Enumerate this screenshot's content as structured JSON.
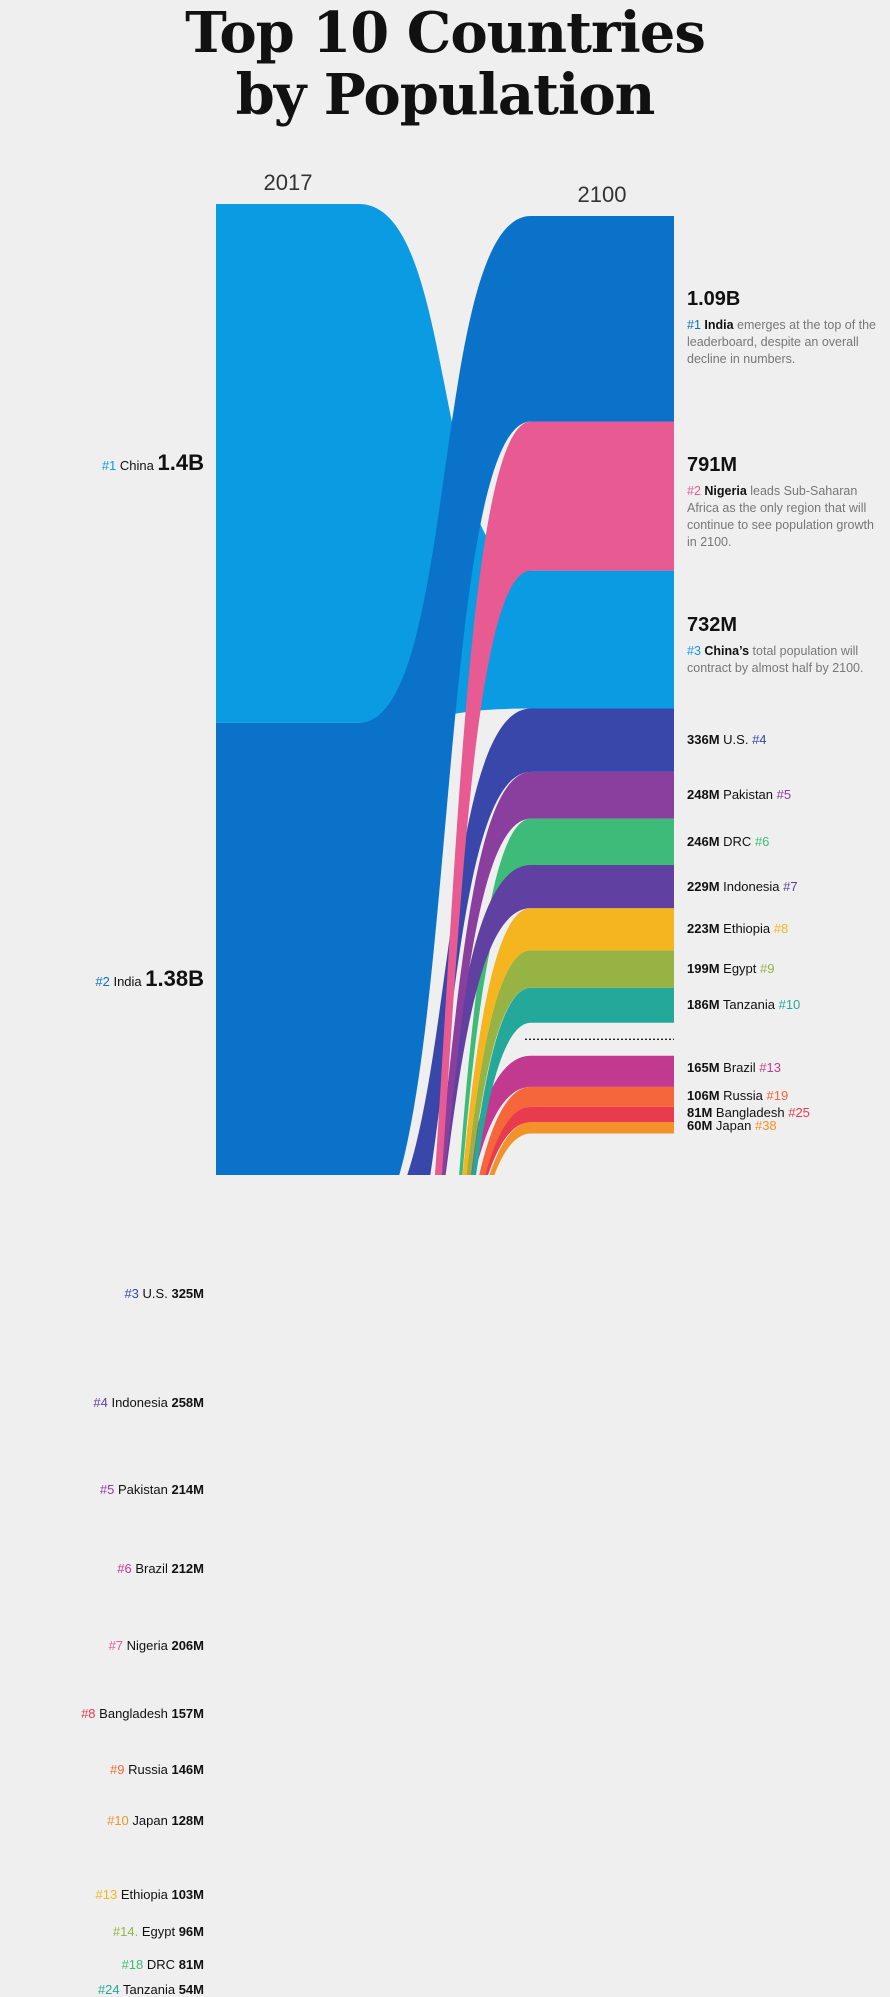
{
  "title": {
    "line1": "Top 10 Countries",
    "line2": "by Population"
  },
  "colors": {
    "China": "#0b9be3",
    "India": "#0a72c8",
    "U.S.": "#3a47aa",
    "Indonesia": "#6040a0",
    "Pakistan": "#8a3f9e",
    "Brazil": "#c23a90",
    "Nigeria": "#e85a92",
    "Bangladesh": "#e83b4d",
    "Russia": "#f7663a",
    "Japan": "#f4922a",
    "Ethiopia": "#f4b51e",
    "Egypt": "#97b344",
    "DRC": "#3ebb78",
    "Tanzania": "#23a89a"
  },
  "chart_data": {
    "type": "slope",
    "years": [
      "2017",
      "2100"
    ],
    "countries": [
      {
        "name": "China",
        "pop_2017": 1400,
        "pop_2100": 732,
        "rank_2017": "#1",
        "rank_2100": "#3",
        "label_2017": "1.4B",
        "label_2100": "732M"
      },
      {
        "name": "India",
        "pop_2017": 1380,
        "pop_2100": 1090,
        "rank_2017": "#2",
        "rank_2100": "#1",
        "label_2017": "1.38B",
        "label_2100": "1.09B"
      },
      {
        "name": "U.S.",
        "pop_2017": 325,
        "pop_2100": 336,
        "rank_2017": "#3",
        "rank_2100": "#4",
        "label_2017": "325M",
        "label_2100": "336M"
      },
      {
        "name": "Indonesia",
        "pop_2017": 258,
        "pop_2100": 229,
        "rank_2017": "#4",
        "rank_2100": "#7",
        "label_2017": "258M",
        "label_2100": "229M"
      },
      {
        "name": "Pakistan",
        "pop_2017": 214,
        "pop_2100": 248,
        "rank_2017": "#5",
        "rank_2100": "#5",
        "label_2017": "214M",
        "label_2100": "248M"
      },
      {
        "name": "Brazil",
        "pop_2017": 212,
        "pop_2100": 165,
        "rank_2017": "#6",
        "rank_2100": "#13",
        "label_2017": "212M",
        "label_2100": "165M"
      },
      {
        "name": "Nigeria",
        "pop_2017": 206,
        "pop_2100": 791,
        "rank_2017": "#7",
        "rank_2100": "#2",
        "label_2017": "206M",
        "label_2100": "791M"
      },
      {
        "name": "Bangladesh",
        "pop_2017": 157,
        "pop_2100": 81,
        "rank_2017": "#8",
        "rank_2100": "#25",
        "label_2017": "157M",
        "label_2100": "81M"
      },
      {
        "name": "Russia",
        "pop_2017": 146,
        "pop_2100": 106,
        "rank_2017": "#9",
        "rank_2100": "#19",
        "label_2017": "146M",
        "label_2100": "106M"
      },
      {
        "name": "Japan",
        "pop_2017": 128,
        "pop_2100": 60,
        "rank_2017": "#10",
        "rank_2100": "#38",
        "label_2017": "128M",
        "label_2100": "60M"
      },
      {
        "name": "Ethiopia",
        "pop_2017": 103,
        "pop_2100": 223,
        "rank_2017": "#13",
        "rank_2100": "#8",
        "label_2017": "103M",
        "label_2100": "223M"
      },
      {
        "name": "Egypt",
        "pop_2017": 96,
        "pop_2100": 199,
        "rank_2017": "#14.",
        "rank_2100": "#9",
        "label_2017": "96M",
        "label_2100": "199M"
      },
      {
        "name": "DRC",
        "pop_2017": 81,
        "pop_2100": 246,
        "rank_2017": "#18",
        "rank_2100": "#6",
        "label_2017": "81M",
        "label_2100": "246M"
      },
      {
        "name": "Tanzania",
        "pop_2017": 54,
        "pop_2100": 186,
        "rank_2017": "#24",
        "rank_2100": "#10",
        "label_2017": "54M",
        "label_2100": "186M"
      }
    ],
    "order_2017": [
      "China",
      "India",
      "U.S.",
      "Indonesia",
      "Pakistan",
      "Brazil",
      "Nigeria",
      "Bangladesh",
      "Russia",
      "Japan",
      "Ethiopia",
      "Egypt",
      "DRC",
      "Tanzania"
    ],
    "order_2100": [
      "India",
      "Nigeria",
      "China",
      "U.S.",
      "Pakistan",
      "DRC",
      "Indonesia",
      "Ethiopia",
      "Egypt",
      "Tanzania",
      "Brazil",
      "Russia",
      "Bangladesh",
      "Japan"
    ],
    "top10_cutoff_after_2017": "Japan",
    "top10_cutoff_after_2100": "Tanzania"
  },
  "callouts": {
    "India": {
      "before": "",
      "name": "India",
      "after": " emerges at the top of the leaderboard, despite an overall decline in numbers."
    },
    "Nigeria": {
      "before": "",
      "name": "Nigeria",
      "after": " leads Sub-Saharan Africa as the only region that will continue to see population growth in 2100."
    },
    "China": {
      "before": "",
      "name": "China’s",
      "after": " total population will contract by almost half by 2100."
    }
  }
}
